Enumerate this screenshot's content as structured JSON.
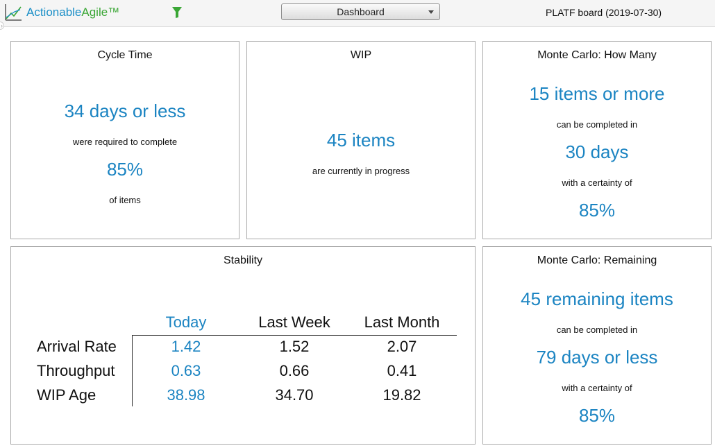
{
  "header": {
    "logo": {
      "part1": "Actionable",
      "part2": "Agile™"
    },
    "dropdown": {
      "selected": "Dashboard"
    },
    "board_title": "PLATF board (2019-07-30)"
  },
  "panels": {
    "cycle_time": {
      "title": "Cycle Time",
      "value": "34 days or less",
      "caption": "were required to complete",
      "percent": "85%",
      "footer": "of items"
    },
    "wip": {
      "title": "WIP",
      "value": "45 items",
      "caption": "are currently in progress"
    },
    "monte_carlo_how_many": {
      "title": "Monte Carlo: How Many",
      "items": "15 items or more",
      "caption1": "can be completed in",
      "days": "30 days",
      "caption2": "with a certainty of",
      "percent": "85%"
    },
    "stability": {
      "title": "Stability",
      "columns": [
        "Today",
        "Last Week",
        "Last Month"
      ],
      "rows": [
        {
          "label": "Arrival Rate",
          "values": [
            "1.42",
            "1.52",
            "2.07"
          ]
        },
        {
          "label": "Throughput",
          "values": [
            "0.63",
            "0.66",
            "0.41"
          ]
        },
        {
          "label": "WIP Age",
          "values": [
            "38.98",
            "34.70",
            "19.82"
          ]
        }
      ]
    },
    "monte_carlo_remaining": {
      "title": "Monte Carlo: Remaining",
      "items": "45 remaining items",
      "caption1": "can be completed in",
      "days": "79 days or less",
      "caption2": "with a certainty of",
      "percent": "85%"
    }
  },
  "colors": {
    "accent": "#1b84c2",
    "logo_blue": "#1c8fc7",
    "logo_green": "#3aa635",
    "filter_green": "#3aa635"
  },
  "icons": {
    "logo": "chart-logo-icon",
    "filter": "filter-icon",
    "dropdown": "chevron-down-icon"
  }
}
